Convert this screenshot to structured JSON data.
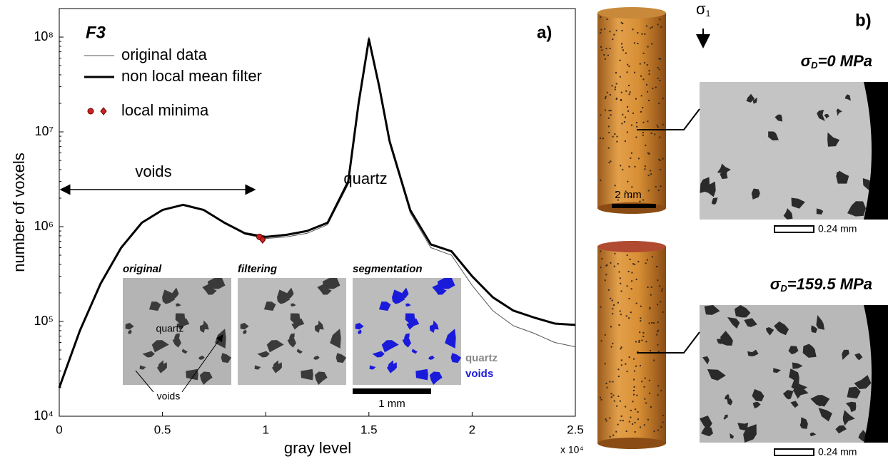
{
  "chart_data": {
    "type": "line",
    "title": "F3",
    "panel_label": "a)",
    "x_label": "gray level",
    "x_multiplier": "x 10⁴",
    "y_label": "number of voxels",
    "log_y": true,
    "xlim": [
      0,
      25000
    ],
    "ylim": [
      10000,
      200000000
    ],
    "xticks": [
      {
        "value": 0,
        "label": "0"
      },
      {
        "value": 5000,
        "label": "0.5"
      },
      {
        "value": 10000,
        "label": "1"
      },
      {
        "value": 15000,
        "label": "1.5"
      },
      {
        "value": 20000,
        "label": "2"
      },
      {
        "value": 25000,
        "label": "2.5"
      }
    ],
    "yticks": [
      {
        "value": 10000,
        "label": "10⁴"
      },
      {
        "value": 100000,
        "label": "10⁵"
      },
      {
        "value": 1000000,
        "label": "10⁶"
      },
      {
        "value": 10000000,
        "label": "10⁷"
      },
      {
        "value": 100000000,
        "label": "10⁸"
      }
    ],
    "x": [
      0,
      1000,
      2000,
      3000,
      4000,
      5000,
      6000,
      7000,
      8000,
      9000,
      10000,
      11000,
      12000,
      13000,
      14000,
      14500,
      15000,
      15500,
      16000,
      17000,
      18000,
      19000,
      20000,
      21000,
      22000,
      23000,
      24000,
      25000
    ],
    "series": [
      {
        "name": "original data",
        "color": "#555555",
        "width": 1,
        "values": [
          20000,
          80000,
          250000,
          600000,
          1100000,
          1500000,
          1700000,
          1500000,
          1100000,
          830000,
          750000,
          780000,
          850000,
          1050000,
          2800000,
          19000000,
          100000000,
          30000000,
          7500000,
          1400000,
          600000,
          500000,
          240000,
          130000,
          90000,
          75000,
          60000,
          54000
        ]
      },
      {
        "name": "non local mean filter",
        "color": "#000000",
        "width": 3,
        "values": [
          20000,
          80000,
          250000,
          600000,
          1100000,
          1500000,
          1700000,
          1500000,
          1100000,
          850000,
          780000,
          820000,
          900000,
          1100000,
          3000000,
          20000000,
          95000000,
          30000000,
          8000000,
          1500000,
          650000,
          550000,
          300000,
          180000,
          130000,
          110000,
          95000,
          92000
        ]
      }
    ],
    "minima": {
      "name": "local minima",
      "color": "#cc2222",
      "x": [
        9700,
        9850
      ],
      "values": [
        780000,
        730000
      ]
    },
    "annotations": {
      "voids": "voids",
      "quartz": "quartz"
    },
    "insets": {
      "titles": [
        "original",
        "filtering",
        "segmentation"
      ],
      "quartz_label": "quartz",
      "voids_label": "voids",
      "scale": "1 mm",
      "legend": [
        {
          "name": "quartz",
          "color": "#888888"
        },
        {
          "name": "voids",
          "color": "#1a1adb"
        }
      ]
    }
  },
  "panel_b": {
    "label": "b)",
    "stress_symbol": "σ",
    "stress_sub": "1",
    "cylinder_scale": "2 mm",
    "panels": [
      {
        "symbol": "σ",
        "sub": "D",
        "text": "=0 MPa",
        "scale": "0.24 mm"
      },
      {
        "symbol": "σ",
        "sub": "D",
        "text": "=159.5 MPa",
        "scale": "0.24 mm"
      }
    ]
  }
}
